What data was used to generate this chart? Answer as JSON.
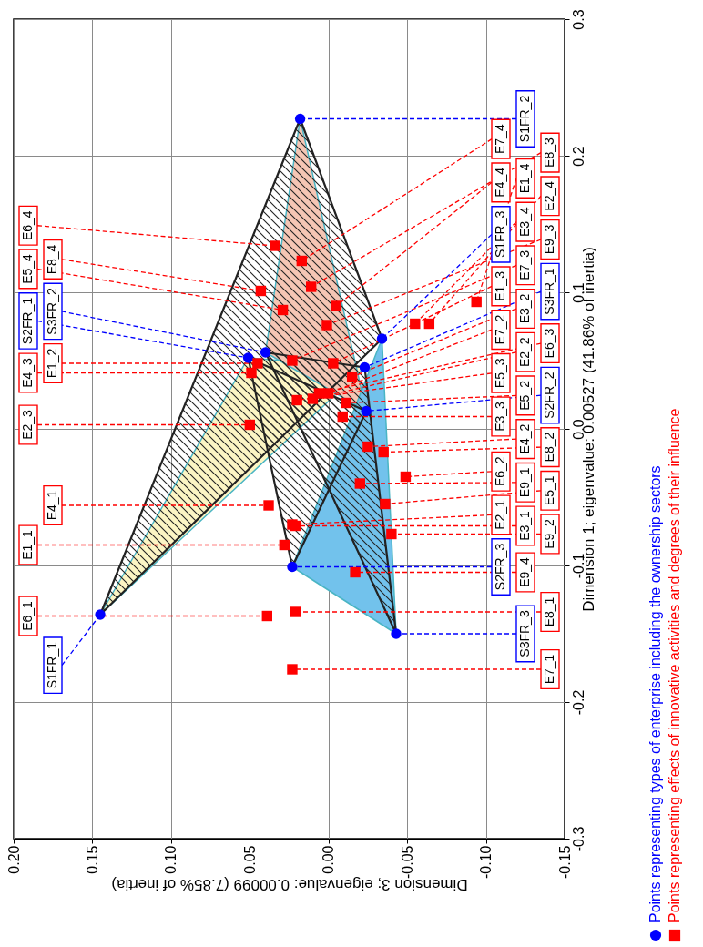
{
  "chart_data": {
    "type": "scatter",
    "xlabel": "Dimension 3; eigenvalue: 0.00099 (7.85% of inertia)",
    "ylabel": "Dimension 1; eigenvalue: 0.00527 (41.86% of inertia)",
    "xlim": [
      0.2,
      -0.15
    ],
    "xticks": [
      {
        "value": 0.2,
        "label": "0.20"
      },
      0.15,
      {
        "value": 0.1,
        "label": "0.10"
      },
      0.05,
      {
        "value": 0,
        "label": "0.00"
      },
      -0.05,
      {
        "value": -0.1,
        "label": "-0.10"
      },
      -0.15
    ],
    "ylim": [
      -0.3,
      0.3
    ],
    "yticks": [
      -0.3,
      -0.2,
      -0.1,
      {
        "value": 0,
        "label": "0.0"
      },
      0.1,
      0.2,
      0.3
    ],
    "grid": true,
    "legend": "right",
    "series": [
      {
        "name": "Points representing types of enterprise including the ownership sectors",
        "color": "#0000ff",
        "marker": "circle",
        "x": [
          0.145,
          0.018,
          -0.034,
          0.051,
          -0.024,
          0.023,
          -0.023,
          0.04,
          -0.043
        ],
        "values": [
          -0.136,
          0.227,
          0.066,
          0.052,
          0.013,
          -0.101,
          0.045,
          0.056,
          -0.15
        ]
      },
      {
        "name": "Points representing effects of innovative activities and degrees of their influence",
        "color": "#ff0000",
        "marker": "square",
        "x": [
          0.034,
          0.017,
          0.043,
          0.011,
          0.029,
          -0.005,
          0.001,
          -0.055,
          -0.064,
          -0.094,
          0.045,
          0.049,
          0.023,
          -0.003,
          -0.015,
          0.02,
          0.01,
          0.006,
          0.0,
          -0.011,
          -0.009,
          0.05,
          -0.025,
          -0.035,
          -0.049,
          -0.02,
          -0.036,
          -0.04,
          0.038,
          0.023,
          0.021,
          0.028,
          -0.017,
          0.039,
          0.021,
          0.023
        ],
        "values": [
          0.134,
          0.123,
          0.101,
          0.104,
          0.087,
          0.09,
          0.076,
          0.077,
          0.077,
          0.093,
          0.048,
          0.041,
          0.05,
          0.048,
          0.038,
          0.021,
          0.022,
          0.026,
          0.026,
          0.019,
          0.009,
          0.003,
          -0.013,
          -0.017,
          -0.035,
          -0.04,
          -0.055,
          -0.077,
          -0.056,
          -0.07,
          -0.071,
          -0.085,
          -0.105,
          -0.137,
          -0.134,
          -0.176
        ]
      }
    ],
    "annotations": [
      {
        "text": "S1FR_1",
        "x": 0.145,
        "y": -0.136
      },
      {
        "text": "S1FR_2",
        "x": 0.018,
        "y": 0.227
      },
      {
        "text": "S1FR_3",
        "x": -0.034,
        "y": 0.066
      },
      {
        "text": "S2FR_1",
        "x": 0.051,
        "y": 0.052
      },
      {
        "text": "S2FR_2",
        "x": -0.024,
        "y": 0.013
      },
      {
        "text": "S2FR_3",
        "x": 0.023,
        "y": -0.101
      },
      {
        "text": "S3FR_1",
        "x": -0.023,
        "y": 0.045
      },
      {
        "text": "S3FR_2",
        "x": 0.04,
        "y": 0.056
      },
      {
        "text": "S3FR_3",
        "x": -0.043,
        "y": -0.15
      },
      {
        "text": "E6_4",
        "x": 0.034,
        "y": 0.134
      },
      {
        "text": "E7_4",
        "x": 0.017,
        "y": 0.123
      },
      {
        "text": "E8_4",
        "x": 0.043,
        "y": 0.101
      },
      {
        "text": "E8_3",
        "x": 0.011,
        "y": 0.104
      },
      {
        "text": "E5_4",
        "x": 0.029,
        "y": 0.087
      },
      {
        "text": "E4_4",
        "x": -0.005,
        "y": 0.09
      },
      {
        "text": "E9_3",
        "x": 0.001,
        "y": 0.076
      },
      {
        "text": "E3_4",
        "x": -0.055,
        "y": 0.077
      },
      {
        "text": "E2_4",
        "x": -0.064,
        "y": 0.077
      },
      {
        "text": "E1_4",
        "x": -0.094,
        "y": 0.093
      },
      {
        "text": "E1_2",
        "x": 0.045,
        "y": 0.048
      },
      {
        "text": "E4_3",
        "x": 0.049,
        "y": 0.041
      },
      {
        "text": "E7_3",
        "x": 0.023,
        "y": 0.05
      },
      {
        "text": "E1_3",
        "x": -0.003,
        "y": 0.048
      },
      {
        "text": "E3_2",
        "x": -0.015,
        "y": 0.038
      },
      {
        "text": "E5_3",
        "x": 0.02,
        "y": 0.021
      },
      {
        "text": "E2_2",
        "x": 0.01,
        "y": 0.022
      },
      {
        "text": "E6_3",
        "x": 0.006,
        "y": 0.026
      },
      {
        "text": "E7_2",
        "x": 0.0,
        "y": 0.026
      },
      {
        "text": "E5_2",
        "x": -0.011,
        "y": 0.019
      },
      {
        "text": "E3_3",
        "x": -0.009,
        "y": 0.009
      },
      {
        "text": "E2_3",
        "x": 0.05,
        "y": 0.003
      },
      {
        "text": "E4_2",
        "x": -0.025,
        "y": -0.013
      },
      {
        "text": "E8_2",
        "x": -0.035,
        "y": -0.017
      },
      {
        "text": "E6_2",
        "x": -0.049,
        "y": -0.035
      },
      {
        "text": "E9_1",
        "x": -0.02,
        "y": -0.04
      },
      {
        "text": "E5_1",
        "x": -0.036,
        "y": -0.055
      },
      {
        "text": "E9_2",
        "x": -0.04,
        "y": -0.077
      },
      {
        "text": "E4_1",
        "x": 0.038,
        "y": -0.056
      },
      {
        "text": "E2_1",
        "x": 0.023,
        "y": -0.07
      },
      {
        "text": "E3_1",
        "x": 0.021,
        "y": -0.071
      },
      {
        "text": "E1_1",
        "x": 0.028,
        "y": -0.085
      },
      {
        "text": "E9_4",
        "x": -0.017,
        "y": -0.105
      },
      {
        "text": "E6_1",
        "x": 0.039,
        "y": -0.137
      },
      {
        "text": "E8_1",
        "x": 0.021,
        "y": -0.134
      },
      {
        "text": "E7_1",
        "x": 0.023,
        "y": -0.176
      }
    ]
  }
}
